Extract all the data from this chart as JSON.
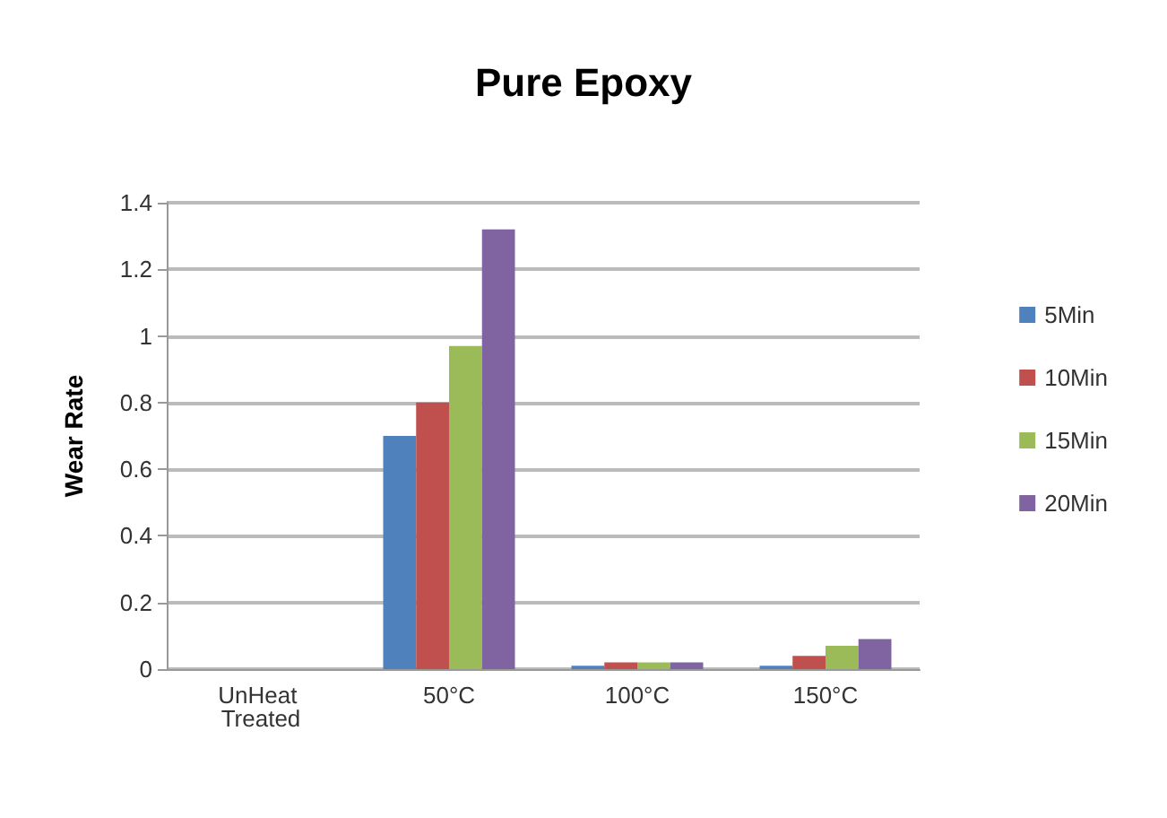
{
  "chart_data": {
    "type": "bar",
    "title": "Pure Epoxy",
    "ylabel": "Wear Rate",
    "categories": [
      "UnHeat Treated",
      "50°C",
      "100°C",
      "150°C"
    ],
    "series": [
      {
        "name": "5Min",
        "color": "#4f81bd",
        "values": [
          0,
          0.7,
          0.01,
          0.01
        ]
      },
      {
        "name": "10Min",
        "color": "#c0504d",
        "values": [
          null,
          0.8,
          0.02,
          0.04
        ]
      },
      {
        "name": "15Min",
        "color": "#9bbb59",
        "values": [
          null,
          0.97,
          0.02,
          0.07
        ]
      },
      {
        "name": "20Min",
        "color": "#8064a2",
        "values": [
          null,
          1.32,
          0.02,
          0.09
        ]
      }
    ],
    "ylim": [
      0,
      1.4
    ],
    "yticks": [
      0,
      0.2,
      0.4,
      0.6,
      0.8,
      1,
      1.2,
      1.4
    ],
    "grid": "y",
    "legend": "right"
  }
}
